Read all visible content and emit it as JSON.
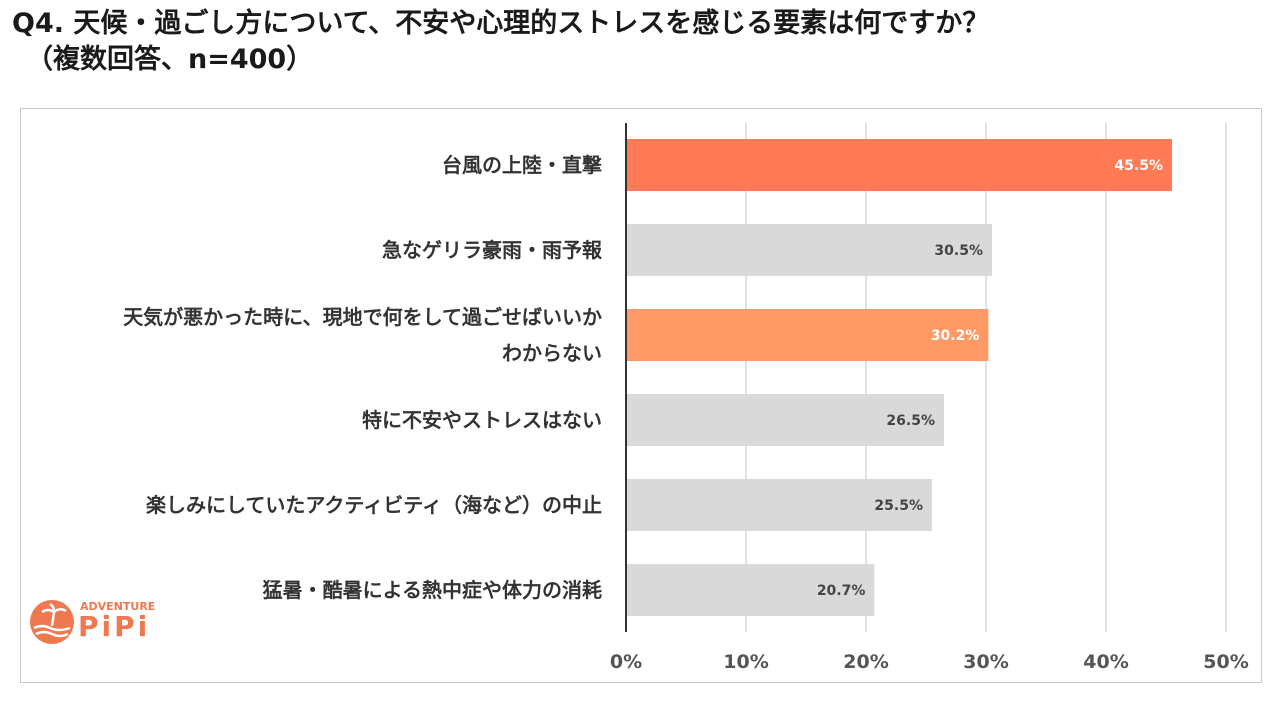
{
  "title": {
    "line1": "Q4. 天候・過ごし方について、不安や心理的ストレスを感じる要素は何ですか？",
    "line2": "（複数回答、n=400）"
  },
  "logo": {
    "top": "ADVENTURE",
    "bottom": "PiPi"
  },
  "chart_data": {
    "type": "bar",
    "orientation": "horizontal",
    "categories": [
      "台風の上陸・直撃",
      "急なゲリラ豪雨・雨予報",
      "天気が悪かった時に、現地で何をして過ごせばいいか\nわからない",
      "特に不安やストレスはない",
      "楽しみにしていたアクティビティ（海など）の中止",
      "猛暑・酷暑による熱中症や体力の消耗"
    ],
    "values": [
      45.5,
      30.5,
      30.2,
      26.5,
      25.5,
      20.7
    ],
    "data_labels": [
      "45.5%",
      "30.5%",
      "30.2%",
      "26.5%",
      "25.5%",
      "20.7%"
    ],
    "colors": [
      "#ff7a55",
      "#d9d9d9",
      "#ff9a66",
      "#d9d9d9",
      "#d9d9d9",
      "#d9d9d9"
    ],
    "label_colors": [
      "#ffffff",
      "#444444",
      "#ffffff",
      "#444444",
      "#444444",
      "#444444"
    ],
    "x_ticks": [
      "0%",
      "10%",
      "20%",
      "30%",
      "40%",
      "50%"
    ],
    "xlim": [
      0,
      50
    ],
    "grid": true,
    "legend": "none"
  }
}
